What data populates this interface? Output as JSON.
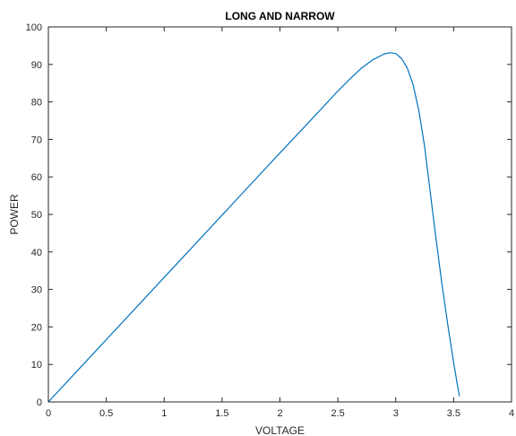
{
  "chart_data": {
    "type": "line",
    "title": "LONG AND NARROW",
    "xlabel": "VOLTAGE",
    "ylabel": "POWER",
    "xlim": [
      0,
      4
    ],
    "ylim": [
      0,
      100
    ],
    "xticks": [
      0,
      0.5,
      1,
      1.5,
      2,
      2.5,
      3,
      3.5,
      4
    ],
    "xtick_labels": [
      "0",
      "0.5",
      "1",
      "1.5",
      "2",
      "2.5",
      "3",
      "3.5",
      "4"
    ],
    "yticks": [
      0,
      10,
      20,
      30,
      40,
      50,
      60,
      70,
      80,
      90,
      100
    ],
    "ytick_labels": [
      "0",
      "10",
      "20",
      "30",
      "40",
      "50",
      "60",
      "70",
      "80",
      "90",
      "100"
    ],
    "grid": false,
    "box": true,
    "line_color": "#0072BD",
    "series": [
      {
        "x": [
          0,
          0.25,
          0.5,
          0.75,
          1.0,
          1.25,
          1.5,
          1.75,
          2.0,
          2.25,
          2.5,
          2.6,
          2.7,
          2.8,
          2.9,
          2.95,
          3.0,
          3.05,
          3.1,
          3.15,
          3.2,
          3.25,
          3.3,
          3.35,
          3.4,
          3.45,
          3.5,
          3.53,
          3.55
        ],
        "values": [
          0,
          8.3,
          16.6,
          24.9,
          33.2,
          41.5,
          49.8,
          58.1,
          66.4,
          74.6,
          82.9,
          86.0,
          88.9,
          91.2,
          92.8,
          93.1,
          92.9,
          91.6,
          89.0,
          84.6,
          77.6,
          68.0,
          55.4,
          43.0,
          31.2,
          20.5,
          10.5,
          5.0,
          1.5
        ]
      }
    ]
  }
}
